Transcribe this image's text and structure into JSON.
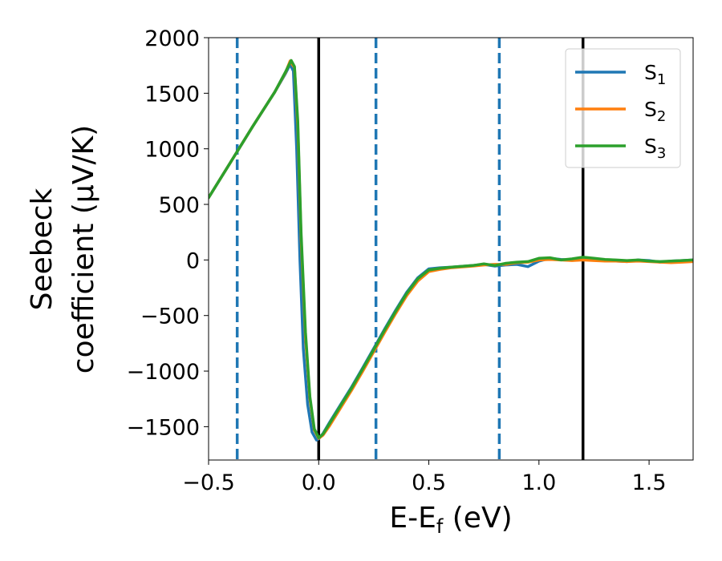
{
  "chart_data": {
    "type": "line",
    "xlabel": "E-E",
    "xlabel_sub": "f",
    "xlabel_tail": " (eV)",
    "ylabel_line1": "Seebeck",
    "ylabel_line2": "coefficient  (μV/K)",
    "xlim": [
      -0.5,
      1.7
    ],
    "ylim": [
      -1800,
      2000
    ],
    "xticks": [
      -0.5,
      0.0,
      0.5,
      1.0,
      1.5
    ],
    "xtick_labels": [
      "−0.5",
      "0.0",
      "0.5",
      "1.0",
      "1.5"
    ],
    "yticks": [
      2000,
      1500,
      1000,
      500,
      0,
      -500,
      -1000,
      -1500
    ],
    "ytick_labels": [
      "2000",
      "1500",
      "1000",
      "500",
      "0",
      "−500",
      "−1000",
      "−1500"
    ],
    "vlines_solid": [
      0.0,
      1.2
    ],
    "vlines_dashed": [
      -0.37,
      0.26,
      0.82
    ],
    "vline_solid_color": "#000000",
    "vline_dashed_color": "#1f77b4",
    "legend_position": "upper-right",
    "series": [
      {
        "name": "S",
        "sub": "1",
        "color": "#1f77b4",
        "x": [
          -0.5,
          -0.4,
          -0.3,
          -0.2,
          -0.15,
          -0.13,
          -0.115,
          -0.1,
          -0.085,
          -0.07,
          -0.05,
          -0.03,
          -0.01,
          0.0,
          0.02,
          0.05,
          0.1,
          0.15,
          0.2,
          0.26,
          0.3,
          0.35,
          0.4,
          0.45,
          0.5,
          0.55,
          0.6,
          0.7,
          0.75,
          0.8,
          0.85,
          0.9,
          0.95,
          1.0,
          1.05,
          1.1,
          1.15,
          1.2,
          1.25,
          1.3,
          1.35,
          1.4,
          1.45,
          1.5,
          1.55,
          1.6,
          1.65,
          1.7
        ],
        "y": [
          560,
          880,
          1200,
          1510,
          1680,
          1760,
          1700,
          1000,
          0,
          -800,
          -1300,
          -1550,
          -1620,
          -1610,
          -1560,
          -1460,
          -1300,
          -1140,
          -970,
          -760,
          -620,
          -450,
          -290,
          -160,
          -80,
          -70,
          -65,
          -50,
          -40,
          -55,
          -45,
          -40,
          -60,
          -10,
          15,
          5,
          0,
          20,
          10,
          0,
          -10,
          -15,
          0,
          -5,
          -20,
          -10,
          -5,
          0
        ]
      },
      {
        "name": "S",
        "sub": "2",
        "color": "#ff7f0e",
        "x": [
          -0.5,
          -0.4,
          -0.3,
          -0.2,
          -0.15,
          -0.13,
          -0.11,
          -0.095,
          -0.08,
          -0.06,
          -0.04,
          -0.02,
          0.0,
          0.02,
          0.05,
          0.1,
          0.15,
          0.2,
          0.26,
          0.3,
          0.35,
          0.4,
          0.45,
          0.5,
          0.55,
          0.6,
          0.7,
          0.75,
          0.8,
          0.85,
          0.9,
          0.95,
          1.0,
          1.05,
          1.1,
          1.15,
          1.2,
          1.25,
          1.3,
          1.35,
          1.4,
          1.45,
          1.5,
          1.55,
          1.6,
          1.65,
          1.7
        ],
        "y": [
          560,
          880,
          1200,
          1510,
          1690,
          1790,
          1730,
          1200,
          200,
          -700,
          -1250,
          -1530,
          -1605,
          -1575,
          -1490,
          -1330,
          -1170,
          -1000,
          -790,
          -650,
          -480,
          -320,
          -190,
          -105,
          -85,
          -70,
          -55,
          -45,
          -40,
          -40,
          -25,
          -20,
          0,
          5,
          0,
          -5,
          0,
          -5,
          -10,
          -10,
          -15,
          -10,
          -15,
          -20,
          -25,
          -20,
          -15
        ]
      },
      {
        "name": "S",
        "sub": "3",
        "color": "#2ca02c",
        "x": [
          -0.5,
          -0.4,
          -0.3,
          -0.2,
          -0.15,
          -0.125,
          -0.11,
          -0.095,
          -0.08,
          -0.06,
          -0.04,
          -0.02,
          0.0,
          0.02,
          0.05,
          0.1,
          0.15,
          0.2,
          0.26,
          0.3,
          0.35,
          0.4,
          0.45,
          0.5,
          0.55,
          0.6,
          0.7,
          0.75,
          0.8,
          0.85,
          0.9,
          0.95,
          1.0,
          1.05,
          1.1,
          1.15,
          1.2,
          1.25,
          1.3,
          1.35,
          1.4,
          1.45,
          1.5,
          1.55,
          1.6,
          1.65,
          1.7
        ],
        "y": [
          560,
          880,
          1200,
          1510,
          1695,
          1795,
          1740,
          1250,
          250,
          -650,
          -1230,
          -1520,
          -1600,
          -1565,
          -1470,
          -1310,
          -1150,
          -980,
          -770,
          -630,
          -460,
          -300,
          -170,
          -90,
          -75,
          -65,
          -50,
          -35,
          -50,
          -30,
          -20,
          -15,
          15,
          20,
          0,
          10,
          25,
          15,
          5,
          0,
          -5,
          0,
          -10,
          -15,
          -10,
          -5,
          0
        ]
      }
    ]
  }
}
